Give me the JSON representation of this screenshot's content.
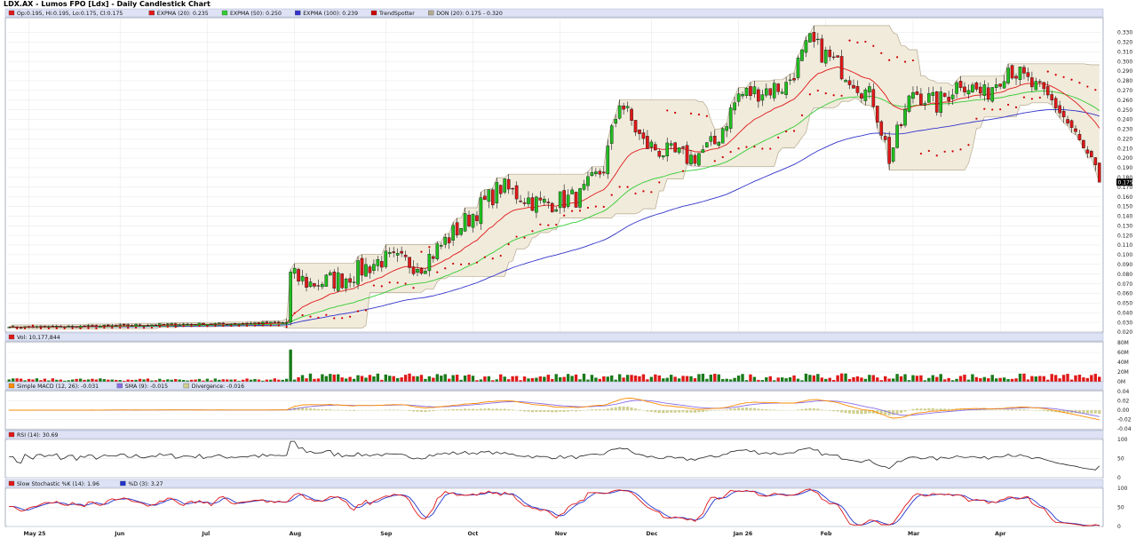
{
  "chart_title": "LDX.AX - Lumos FPO [Ldx] - Daily Candlestick Chart",
  "colors": {
    "up": "#1fbf1f",
    "down": "#e01818",
    "expma20": "#e01818",
    "expma50": "#33cc33",
    "expma100": "#3333cc",
    "trend": "#cc0000",
    "don_fill": "#f1ebdc",
    "don_line": "#b5a98e",
    "macd": "#ff8c00",
    "sma": "#8a6ee6",
    "divergence": "#cfcf90",
    "rsi": "#222222",
    "stoch_k": "#e01818",
    "stoch_d": "#2233cc",
    "panel_header": "#dde3f5",
    "grid": "#e6e6e6"
  },
  "chart_data": [
    {
      "type": "candlestick",
      "panel": "price",
      "legend": [
        {
          "label": "Op:0.195, Hi:0.195, Lo:0.175, Cl:0.175",
          "icon": "candle-icon"
        },
        {
          "label": "EXPMA (20): 0.235",
          "icon": "line-red"
        },
        {
          "label": "EXPMA (50): 0.250",
          "icon": "line-green"
        },
        {
          "label": "EXPMA (100): 0.239",
          "icon": "line-blue"
        },
        {
          "label": "TrendSpotter",
          "icon": "dot-red"
        },
        {
          "label": "DON (20): 0.175 - 0.320",
          "icon": "line-tan"
        }
      ],
      "ylim": [
        0.02,
        0.33
      ],
      "yticks": [
        "0.330",
        "0.320",
        "0.310",
        "0.300",
        "0.290",
        "0.280",
        "0.270",
        "0.260",
        "0.250",
        "0.240",
        "0.230",
        "0.220",
        "0.210",
        "0.200",
        "0.190",
        "0.180",
        "0.170",
        "0.160",
        "0.150",
        "0.140",
        "0.130",
        "0.120",
        "0.110",
        "0.100",
        "0.090",
        "0.080",
        "0.070",
        "0.060",
        "0.050",
        "0.040",
        "0.030",
        "0.020"
      ],
      "last_price_label": "0.175",
      "xlabels": [
        "May 25",
        "Jun",
        "Jul",
        "Aug",
        "Sep",
        "Oct",
        "Nov",
        "Dec",
        "Jan 26",
        "Feb",
        "Mar",
        "Apr"
      ],
      "anchors": [
        [
          0,
          0.025
        ],
        [
          20,
          0.026
        ],
        [
          40,
          0.028
        ],
        [
          60,
          0.029
        ],
        [
          70,
          0.03
        ],
        [
          71,
          0.078
        ],
        [
          76,
          0.07
        ],
        [
          84,
          0.075
        ],
        [
          94,
          0.095
        ],
        [
          104,
          0.09
        ],
        [
          114,
          0.13
        ],
        [
          124,
          0.17
        ],
        [
          134,
          0.152
        ],
        [
          144,
          0.16
        ],
        [
          150,
          0.19
        ],
        [
          154,
          0.26
        ],
        [
          160,
          0.215
        ],
        [
          166,
          0.205
        ],
        [
          172,
          0.2
        ],
        [
          178,
          0.215
        ],
        [
          184,
          0.265
        ],
        [
          190,
          0.27
        ],
        [
          196,
          0.275
        ],
        [
          202,
          0.32
        ],
        [
          212,
          0.285
        ],
        [
          218,
          0.26
        ],
        [
          222,
          0.2
        ],
        [
          228,
          0.27
        ],
        [
          234,
          0.255
        ],
        [
          240,
          0.28
        ],
        [
          246,
          0.265
        ],
        [
          252,
          0.295
        ],
        [
          258,
          0.275
        ],
        [
          264,
          0.255
        ],
        [
          268,
          0.23
        ],
        [
          272,
          0.2
        ],
        [
          275,
          0.178
        ]
      ],
      "last_candle": {
        "open": 0.195,
        "high": 0.195,
        "low": 0.175,
        "close": 0.175
      },
      "expma20_last": 0.235,
      "expma50_last": 0.25,
      "expma100_last": 0.239,
      "donchian_last": [
        0.175,
        0.32
      ]
    },
    {
      "type": "bar",
      "panel": "volume",
      "legend": [
        {
          "label": "Vol: 10,177,844"
        }
      ],
      "yticks": [
        "80M",
        "60M",
        "40M",
        "20M",
        "0M"
      ],
      "ylim": [
        0,
        80000000
      ],
      "spike": {
        "x": 71,
        "value": 66000000
      },
      "last_value": 10177844
    },
    {
      "type": "line",
      "panel": "macd",
      "legend": [
        {
          "label": "Simple MACD (12, 26): -0.031"
        },
        {
          "label": "SMA (9): -0.015"
        },
        {
          "label": "Divergence: -0.016"
        }
      ],
      "yticks": [
        "0.04",
        "0.02",
        "0.00",
        "-0.02",
        "-0.04"
      ],
      "ylim": [
        -0.04,
        0.04
      ]
    },
    {
      "type": "line",
      "panel": "rsi",
      "legend": [
        {
          "label": "RSI (14): 30.69"
        }
      ],
      "yticks": [
        "100",
        "50",
        "0"
      ],
      "ylim": [
        0,
        100
      ]
    },
    {
      "type": "line",
      "panel": "stochastic",
      "legend": [
        {
          "label": "Slow Stochastic %K (14): 1.96"
        },
        {
          "label": "%D (3): 3.27"
        }
      ],
      "yticks": [
        "100",
        "50",
        "0"
      ],
      "ylim": [
        0,
        100
      ]
    }
  ]
}
